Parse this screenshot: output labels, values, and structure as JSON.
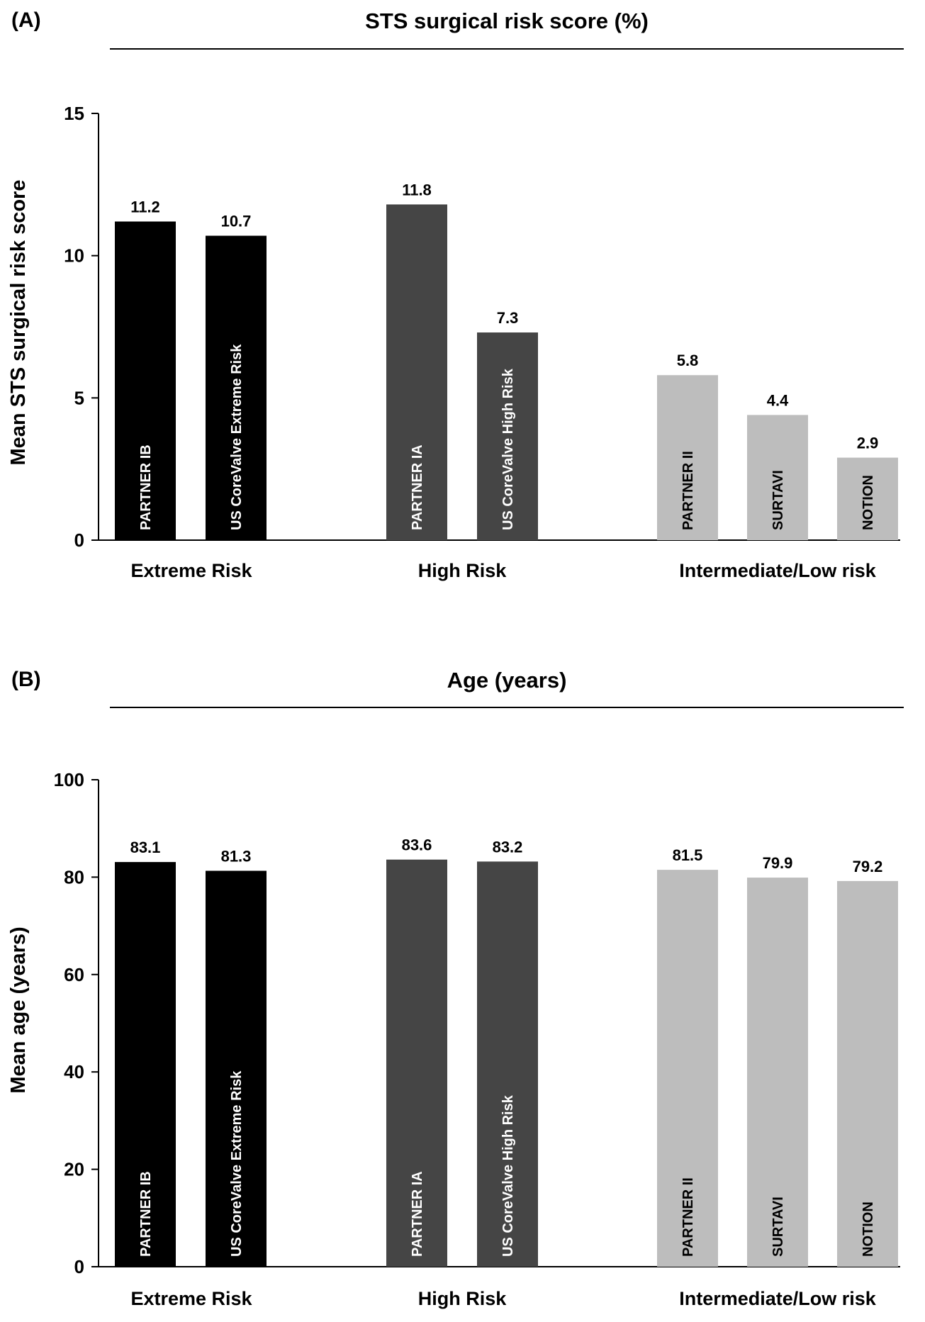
{
  "colors": {
    "extreme": "#000000",
    "high": "#454545",
    "intermediate": "#bdbdbd",
    "axis": "#000000",
    "text": "#000000"
  },
  "chart_data": [
    {
      "panel": "(A)",
      "type": "bar",
      "title": "STS surgical risk score (%)",
      "ylabel": "Mean STS surgical risk score",
      "xlabel": "",
      "ylim": [
        0,
        15
      ],
      "yticks": [
        0,
        5,
        10,
        15
      ],
      "groups": [
        "Extreme Risk",
        "High Risk",
        "Intermediate/Low risk"
      ],
      "bars": [
        {
          "label": "PARTNER IB",
          "group": "Extreme Risk",
          "value": 11.2,
          "value_label": "11.2",
          "color_key": "extreme"
        },
        {
          "label": "US CoreValve Extreme Risk",
          "group": "Extreme Risk",
          "value": 10.7,
          "value_label": "10.7",
          "color_key": "extreme"
        },
        {
          "label": "PARTNER IA",
          "group": "High Risk",
          "value": 11.8,
          "value_label": "11.8",
          "color_key": "high"
        },
        {
          "label": "US CoreValve High Risk",
          "group": "High Risk",
          "value": 7.3,
          "value_label": "7.3",
          "color_key": "high"
        },
        {
          "label": "PARTNER II",
          "group": "Intermediate/Low risk",
          "value": 5.8,
          "value_label": "5.8",
          "color_key": "intermediate"
        },
        {
          "label": "SURTAVI",
          "group": "Intermediate/Low risk",
          "value": 4.4,
          "value_label": "4.4",
          "color_key": "intermediate"
        },
        {
          "label": "NOTION",
          "group": "Intermediate/Low risk",
          "value": 2.9,
          "value_label": "2.9",
          "color_key": "intermediate"
        }
      ]
    },
    {
      "panel": "(B)",
      "type": "bar",
      "title": "Age (years)",
      "ylabel": "Mean age (years)",
      "xlabel": "",
      "ylim": [
        0,
        100
      ],
      "yticks": [
        0,
        20,
        40,
        60,
        80,
        100
      ],
      "groups": [
        "Extreme Risk",
        "High Risk",
        "Intermediate/Low risk"
      ],
      "bars": [
        {
          "label": "PARTNER IB",
          "group": "Extreme Risk",
          "value": 83.1,
          "value_label": "83.1",
          "color_key": "extreme"
        },
        {
          "label": "US CoreValve Extreme Risk",
          "group": "Extreme Risk",
          "value": 81.3,
          "value_label": "81.3",
          "color_key": "extreme"
        },
        {
          "label": "PARTNER IA",
          "group": "High Risk",
          "value": 83.6,
          "value_label": "83.6",
          "color_key": "high"
        },
        {
          "label": "US CoreValve High Risk",
          "group": "High Risk",
          "value": 83.2,
          "value_label": "83.2",
          "color_key": "high"
        },
        {
          "label": "PARTNER II",
          "group": "Intermediate/Low risk",
          "value": 81.5,
          "value_label": "81.5",
          "color_key": "intermediate"
        },
        {
          "label": "SURTAVI",
          "group": "Intermediate/Low risk",
          "value": 79.9,
          "value_label": "79.9",
          "color_key": "intermediate"
        },
        {
          "label": "NOTION",
          "group": "Intermediate/Low risk",
          "value": 79.2,
          "value_label": "79.2",
          "color_key": "intermediate"
        }
      ]
    }
  ]
}
